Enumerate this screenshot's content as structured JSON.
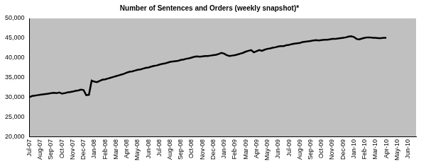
{
  "chart_data": {
    "type": "line",
    "title": "Number of Sentences and Orders (weekly snapshot)*",
    "categories": [
      "Jul-07",
      null,
      null,
      null,
      "Aug-07",
      null,
      null,
      null,
      "Sep-07",
      null,
      null,
      null,
      "Oct-07",
      null,
      null,
      null,
      "Nov-07",
      null,
      null,
      null,
      "Dec-07",
      null,
      null,
      null,
      "Jan-08",
      null,
      null,
      null,
      "Feb-08",
      null,
      null,
      null,
      "Mar-08",
      null,
      null,
      null,
      "Apr-08",
      null,
      null,
      null,
      "May-08",
      null,
      null,
      null,
      "Jun-08",
      null,
      null,
      null,
      "Jul-08",
      null,
      null,
      null,
      "Aug-08",
      null,
      null,
      null,
      "Sep-08",
      null,
      null,
      null,
      "Oct-08",
      null,
      null,
      null,
      "Nov-08",
      null,
      null,
      null,
      "Dec-08",
      null,
      null,
      null,
      "Jan-09",
      null,
      null,
      null,
      "Feb-09",
      null,
      null,
      null,
      "Mar-09",
      null,
      null,
      null,
      "Apr-09",
      null,
      null,
      null,
      "May-09",
      null,
      null,
      null,
      "Jun-09",
      null,
      null,
      null,
      "Jul-09",
      null,
      null,
      null,
      "Aug-09",
      null,
      null,
      null,
      "Sep-09",
      null,
      null,
      null,
      "Oct-09",
      null,
      null,
      null,
      "Nov-09",
      null,
      null,
      null,
      "Dec-09",
      null,
      null,
      null,
      "Jan-10",
      null,
      null,
      null,
      "Feb-10",
      null,
      null,
      null,
      "Mar-10",
      null,
      null,
      null,
      "Apr-10",
      null,
      null,
      null,
      "May-10",
      null,
      null,
      null,
      "Jun-10",
      null,
      null,
      null
    ],
    "values": [
      30100,
      30400,
      30500,
      30600,
      30700,
      30800,
      30900,
      31000,
      31100,
      31200,
      31100,
      31300,
      31000,
      31100,
      31300,
      31400,
      31500,
      31700,
      31800,
      32000,
      31900,
      30600,
      30700,
      34300,
      34000,
      33900,
      34200,
      34500,
      34600,
      34800,
      35000,
      35200,
      35400,
      35600,
      35800,
      36000,
      36300,
      36500,
      36600,
      36800,
      37000,
      37100,
      37300,
      37500,
      37600,
      37800,
      38000,
      38100,
      38300,
      38500,
      38600,
      38800,
      39000,
      39100,
      39200,
      39300,
      39500,
      39600,
      39800,
      39900,
      40100,
      40300,
      40400,
      40300,
      40400,
      40500,
      40500,
      40600,
      40700,
      40800,
      41000,
      41300,
      41100,
      40700,
      40500,
      40600,
      40700,
      40900,
      41100,
      41300,
      41600,
      41800,
      42000,
      41400,
      41700,
      42000,
      41800,
      42100,
      42300,
      42400,
      42600,
      42700,
      42900,
      43000,
      43000,
      43200,
      43300,
      43500,
      43600,
      43700,
      43800,
      44000,
      44100,
      44200,
      44300,
      44400,
      44500,
      44400,
      44500,
      44600,
      44600,
      44700,
      44800,
      44800,
      44900,
      45000,
      45100,
      45200,
      45400,
      45500,
      45300,
      44800,
      44700,
      44900,
      45100,
      45200,
      45200,
      45100,
      45100,
      45000,
      45000,
      45100,
      45100,
      null,
      null,
      null,
      null,
      null,
      null,
      null,
      null,
      null,
      null,
      null
    ],
    "color": "#000000",
    "ylim": [
      20000,
      50000
    ],
    "yticks": [
      {
        "value": 20000,
        "label": "20,000"
      },
      {
        "value": 25000,
        "label": "25,000"
      },
      {
        "value": 30000,
        "label": "30,000"
      },
      {
        "value": 35000,
        "label": "35,000"
      },
      {
        "value": 40000,
        "label": "40,000"
      },
      {
        "value": 45000,
        "label": "45,000"
      },
      {
        "value": 50000,
        "label": "50,000"
      }
    ],
    "grid": false
  }
}
